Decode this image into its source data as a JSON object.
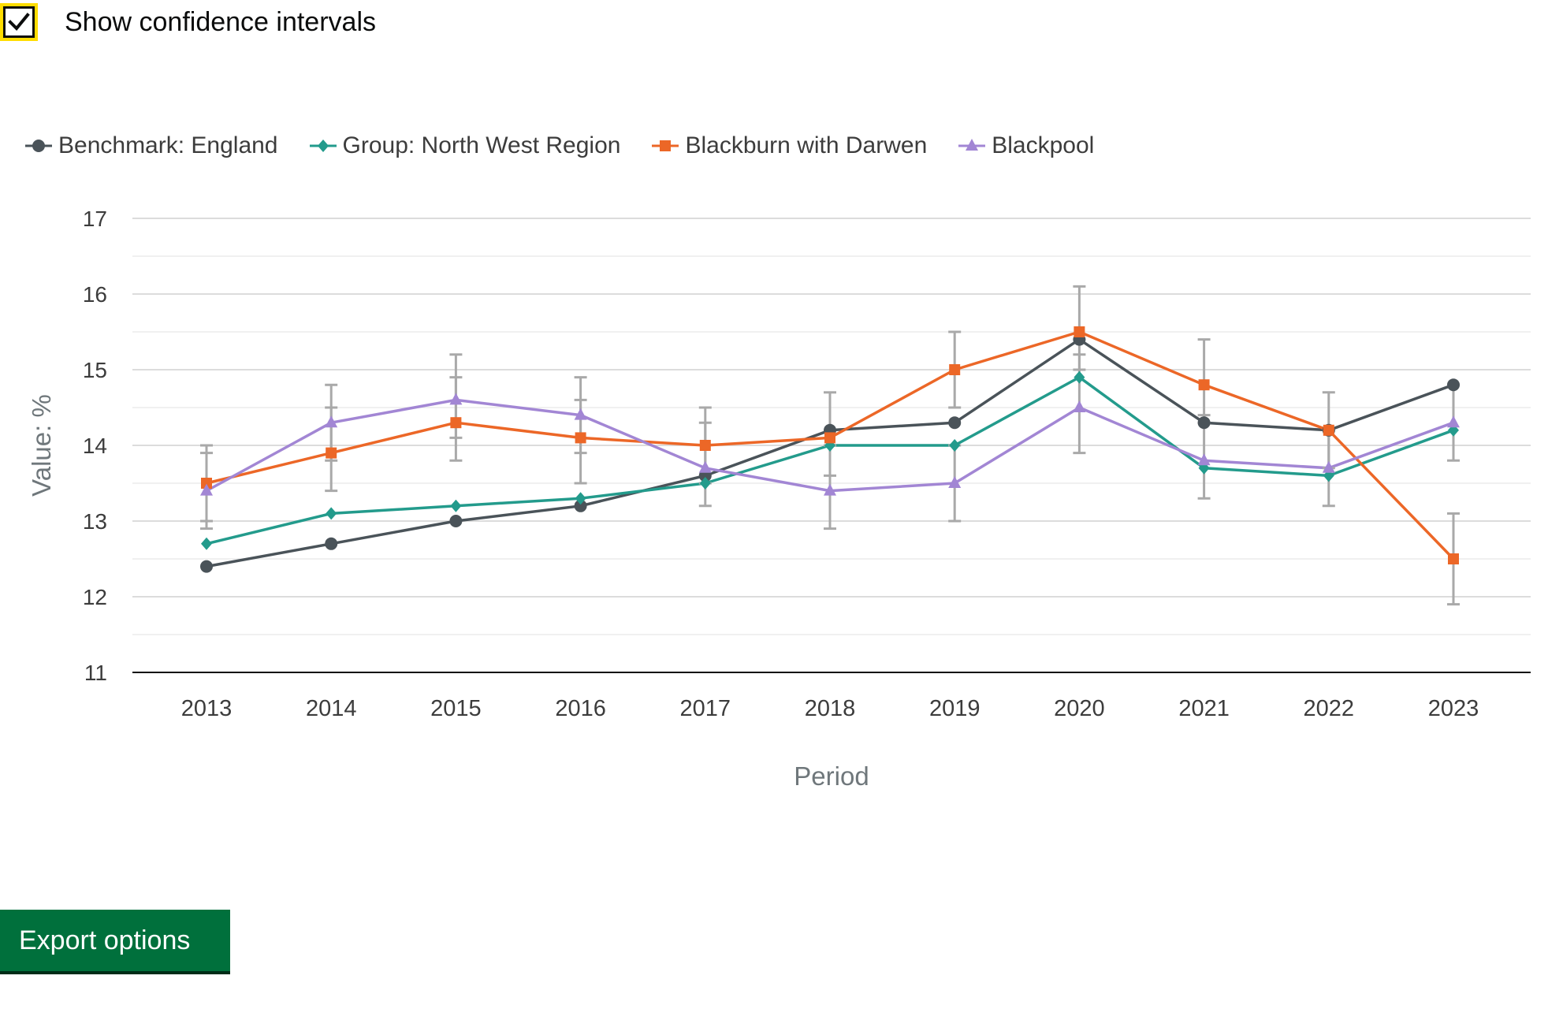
{
  "controls": {
    "confidence_label": "Show confidence intervals",
    "confidence_checked": true,
    "export_label": "Export options"
  },
  "colors": {
    "checkbox_focus": "#ffdd00",
    "export_button": "#00703c"
  },
  "chart_data": {
    "type": "line",
    "title": "",
    "xlabel": "Period",
    "ylabel": "Value: %",
    "ylim": [
      11,
      17
    ],
    "yticks": [
      "11",
      "12",
      "13",
      "14",
      "15",
      "16",
      "17"
    ],
    "grid": true,
    "legend_position": "top-left",
    "categories": [
      "2013",
      "2014",
      "2015",
      "2016",
      "2017",
      "2018",
      "2019",
      "2020",
      "2021",
      "2022",
      "2023"
    ],
    "series": [
      {
        "name": "Benchmark: England",
        "color": "#4a5359",
        "marker": "circle",
        "values": [
          12.4,
          12.7,
          13.0,
          13.2,
          13.6,
          14.2,
          14.3,
          15.4,
          14.3,
          14.2,
          14.8
        ]
      },
      {
        "name": "Group: North West Region",
        "color": "#239b8c",
        "marker": "diamond",
        "values": [
          12.7,
          13.1,
          13.2,
          13.3,
          13.5,
          14.0,
          14.0,
          14.9,
          13.7,
          13.6,
          14.2
        ]
      },
      {
        "name": "Blackburn with Darwen",
        "color": "#ec6727",
        "marker": "square",
        "values": [
          13.5,
          13.9,
          14.3,
          14.1,
          14.0,
          14.1,
          15.0,
          15.5,
          14.8,
          14.2,
          12.5
        ],
        "ci_lower": [
          13.0,
          13.4,
          13.8,
          13.5,
          13.5,
          13.6,
          14.5,
          15.0,
          14.3,
          13.7,
          11.9
        ],
        "ci_upper": [
          14.0,
          14.5,
          14.9,
          14.6,
          14.5,
          14.7,
          15.5,
          16.1,
          15.4,
          14.7,
          13.1
        ]
      },
      {
        "name": "Blackpool",
        "color": "#a286d4",
        "marker": "triangle",
        "values": [
          13.4,
          14.3,
          14.6,
          14.4,
          13.7,
          13.4,
          13.5,
          14.5,
          13.8,
          13.7,
          14.3
        ],
        "ci_lower": [
          12.9,
          13.8,
          14.1,
          13.9,
          13.2,
          12.9,
          13.0,
          13.9,
          13.3,
          13.2,
          13.8
        ],
        "ci_upper": [
          13.9,
          14.8,
          15.2,
          14.9,
          14.3,
          14.0,
          14.0,
          15.2,
          14.4,
          14.2,
          14.8
        ]
      }
    ]
  }
}
